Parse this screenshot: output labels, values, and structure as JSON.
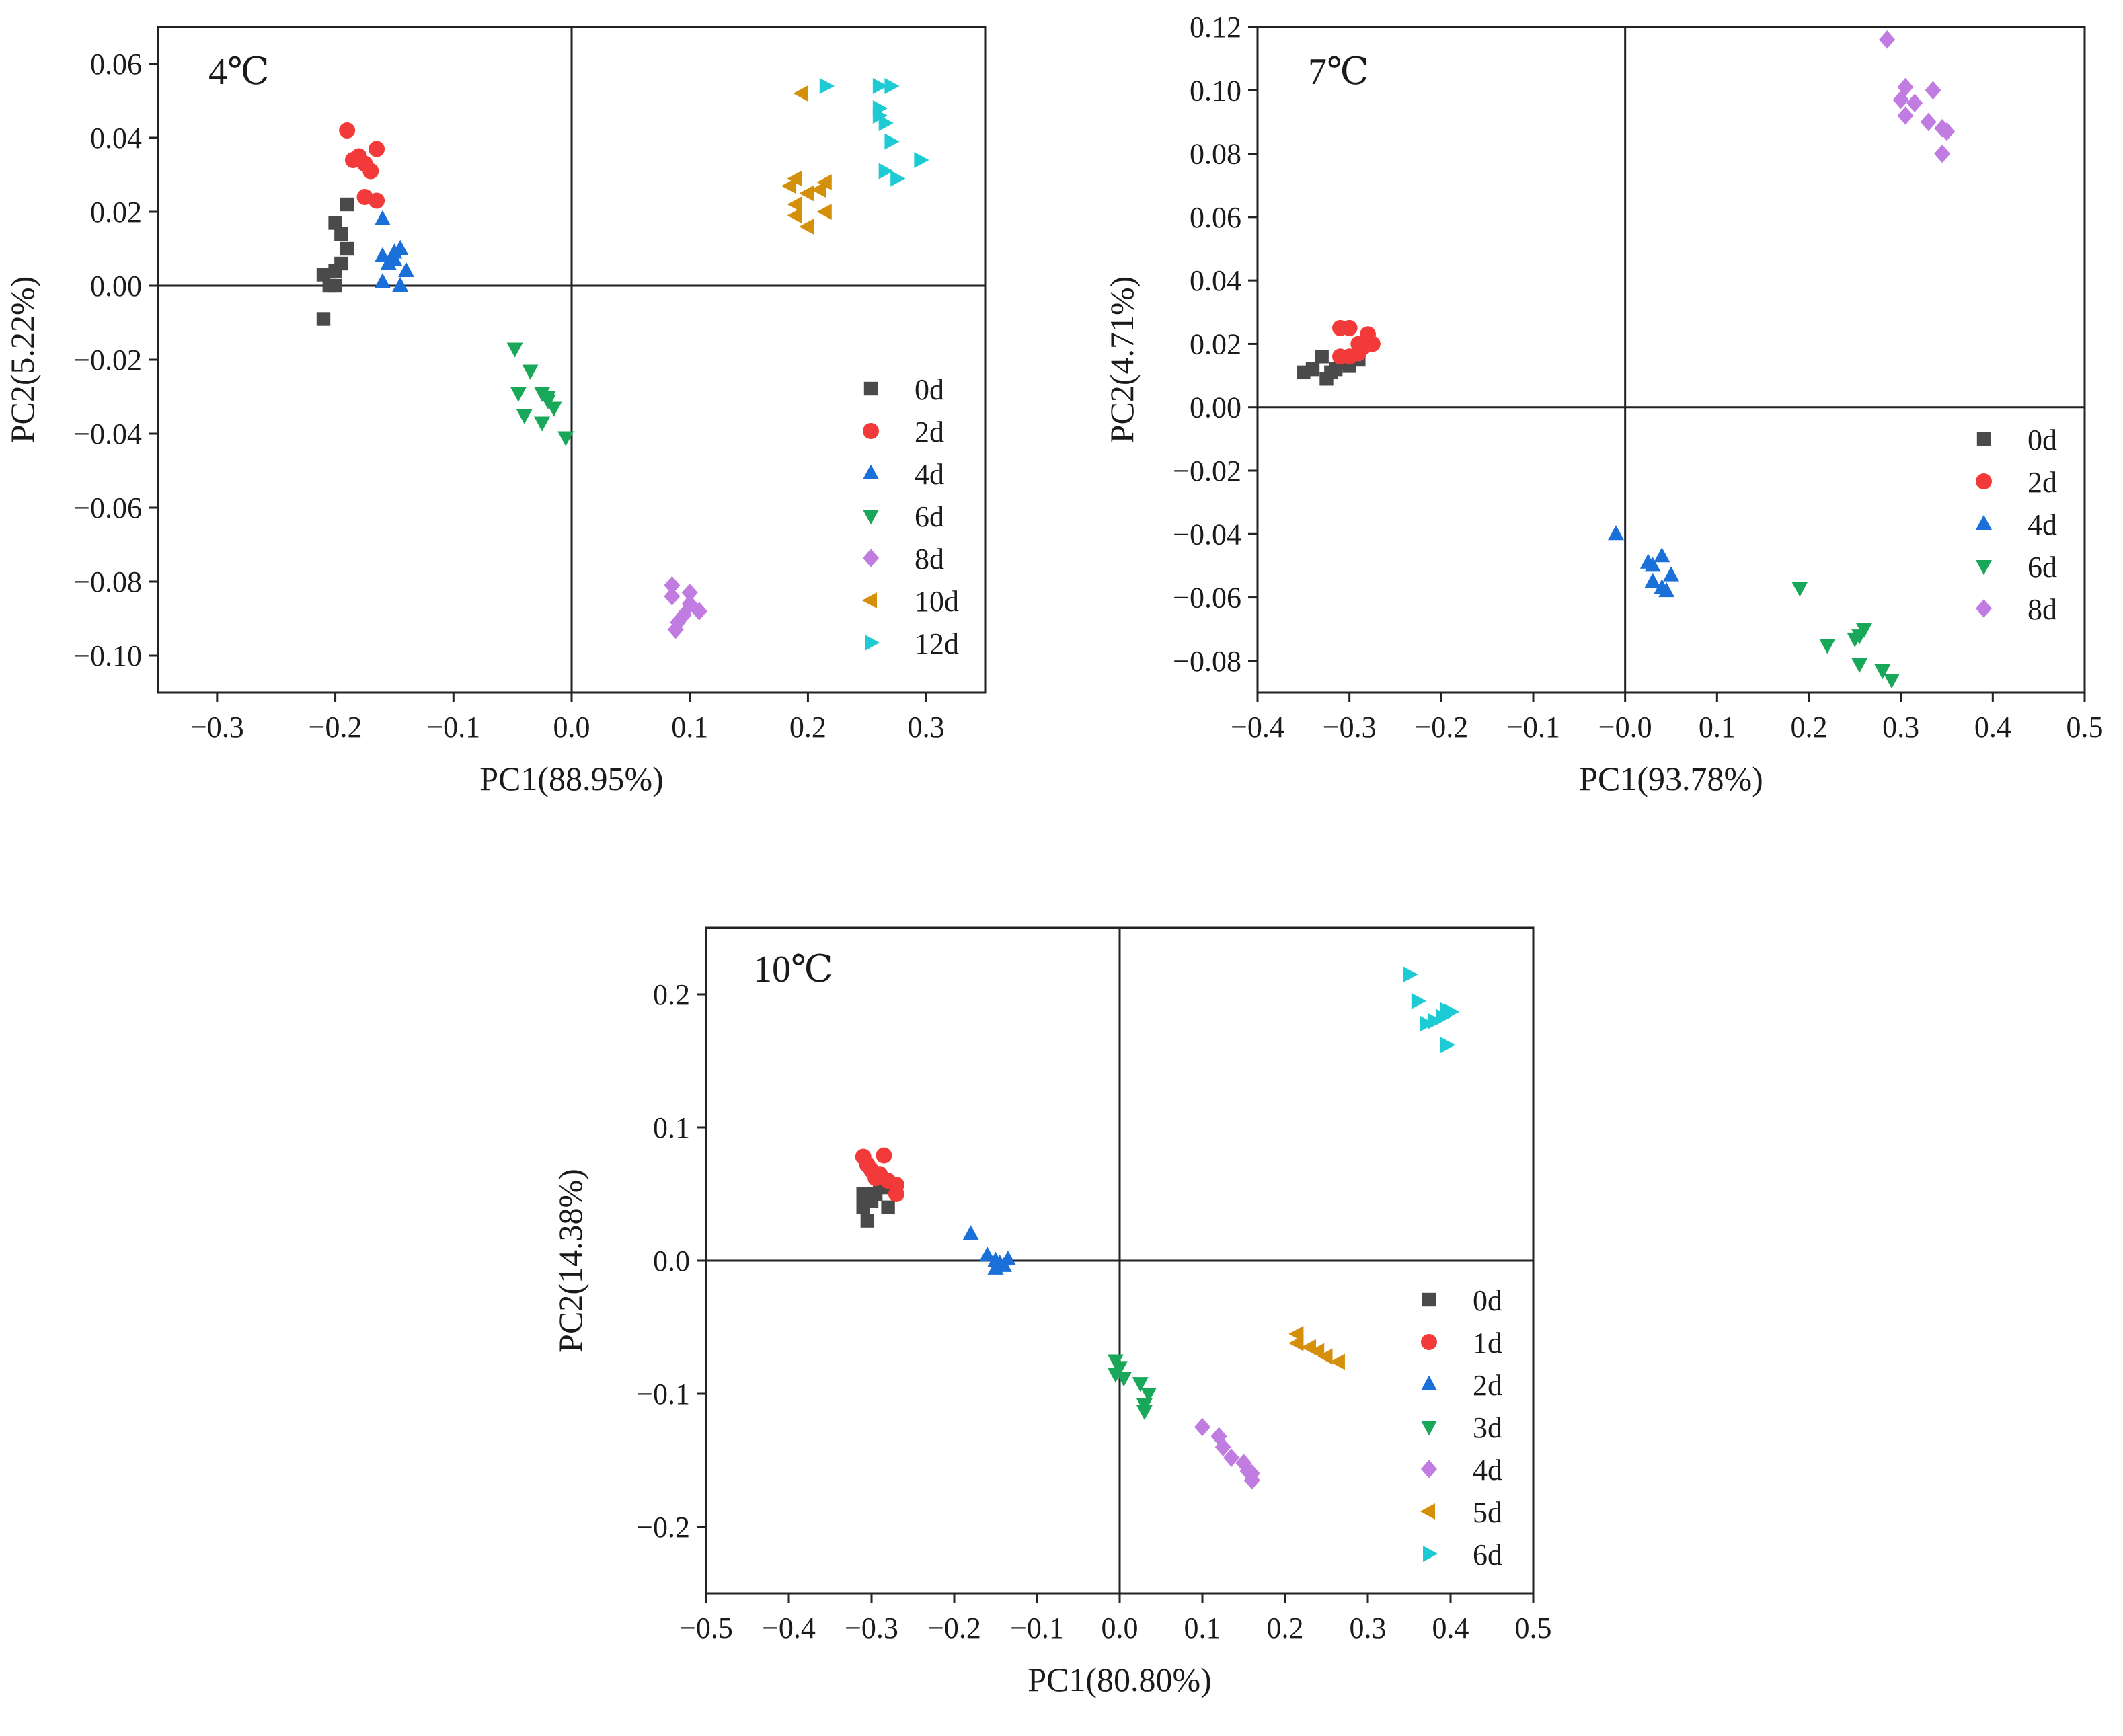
{
  "figure_kind": "PCA score plots",
  "colors": {
    "0d": "#4a4a4a",
    "red": "#f23a3a",
    "blue": "#1a6fd9",
    "green": "#19a85a",
    "purple": "#c07ce0",
    "orange": "#d4900a",
    "cyan": "#1ccbd4"
  },
  "chart_data": [
    {
      "type": "scatter",
      "title": "4℃",
      "xlabel": "PC1(88.95%)",
      "ylabel": "PC2(5.22%)",
      "xlim": [
        -0.35,
        0.35
      ],
      "ylim": [
        -0.11,
        0.07
      ],
      "xticks": [
        -0.3,
        -0.2,
        -0.1,
        0.0,
        0.1,
        0.2,
        0.3
      ],
      "xtick_labels": [
        "−0.3",
        "−0.2",
        "−0.1",
        "0.0",
        "0.1",
        "0.2",
        "0.3"
      ],
      "yticks": [
        -0.1,
        -0.08,
        -0.06,
        -0.04,
        -0.02,
        0.0,
        0.02,
        0.04,
        0.06
      ],
      "ytick_labels": [
        "−0.10",
        "−0.08",
        "−0.06",
        "−0.04",
        "−0.02",
        "0.00",
        "0.02",
        "0.04",
        "0.06"
      ],
      "legend_position": "lower-right inside",
      "series": [
        {
          "name": "0d",
          "marker": "square",
          "color": "#4a4a4a",
          "points": [
            [
              -0.21,
              -0.009
            ],
            [
              -0.2,
              0.017
            ],
            [
              -0.19,
              0.022
            ],
            [
              -0.195,
              0.014
            ],
            [
              -0.2,
              0.004
            ],
            [
              -0.205,
              0.0
            ],
            [
              -0.195,
              0.006
            ],
            [
              -0.19,
              0.01
            ],
            [
              -0.21,
              0.003
            ],
            [
              -0.2,
              0.0
            ]
          ]
        },
        {
          "name": "2d",
          "marker": "circle",
          "color": "#f23a3a",
          "points": [
            [
              -0.19,
              0.042
            ],
            [
              -0.18,
              0.035
            ],
            [
              -0.165,
              0.037
            ],
            [
              -0.175,
              0.033
            ],
            [
              -0.17,
              0.031
            ],
            [
              -0.175,
              0.024
            ],
            [
              -0.165,
              0.023
            ],
            [
              -0.185,
              0.034
            ]
          ]
        },
        {
          "name": "4d",
          "marker": "triangle-up",
          "color": "#1a6fd9",
          "points": [
            [
              -0.16,
              0.018
            ],
            [
              -0.16,
              0.008
            ],
            [
              -0.15,
              0.009
            ],
            [
              -0.145,
              0.01
            ],
            [
              -0.155,
              0.006
            ],
            [
              -0.16,
              0.001
            ],
            [
              -0.145,
              0.0
            ],
            [
              -0.14,
              0.004
            ],
            [
              -0.15,
              0.007
            ]
          ]
        },
        {
          "name": "6d",
          "marker": "triangle-down",
          "color": "#19a85a",
          "points": [
            [
              -0.048,
              -0.017
            ],
            [
              -0.035,
              -0.023
            ],
            [
              -0.045,
              -0.029
            ],
            [
              -0.025,
              -0.029
            ],
            [
              -0.02,
              -0.031
            ],
            [
              -0.015,
              -0.033
            ],
            [
              -0.04,
              -0.035
            ],
            [
              -0.025,
              -0.037
            ],
            [
              -0.005,
              -0.041
            ],
            [
              -0.02,
              -0.03
            ]
          ]
        },
        {
          "name": "8d",
          "marker": "diamond",
          "color": "#c07ce0",
          "points": [
            [
              0.085,
              -0.081
            ],
            [
              0.085,
              -0.084
            ],
            [
              0.1,
              -0.083
            ],
            [
              0.1,
              -0.086
            ],
            [
              0.108,
              -0.088
            ],
            [
              0.095,
              -0.089
            ],
            [
              0.09,
              -0.091
            ],
            [
              0.088,
              -0.093
            ]
          ]
        },
        {
          "name": "10d",
          "marker": "triangle-left",
          "color": "#d4900a",
          "points": [
            [
              0.195,
              0.052
            ],
            [
              0.19,
              0.029
            ],
            [
              0.185,
              0.027
            ],
            [
              0.215,
              0.028
            ],
            [
              0.2,
              0.025
            ],
            [
              0.21,
              0.026
            ],
            [
              0.19,
              0.022
            ],
            [
              0.215,
              0.02
            ],
            [
              0.19,
              0.019
            ],
            [
              0.2,
              0.016
            ]
          ]
        },
        {
          "name": "12d",
          "marker": "triangle-right",
          "color": "#1ccbd4",
          "points": [
            [
              0.215,
              0.054
            ],
            [
              0.26,
              0.054
            ],
            [
              0.27,
              0.054
            ],
            [
              0.26,
              0.048
            ],
            [
              0.265,
              0.044
            ],
            [
              0.27,
              0.039
            ],
            [
              0.26,
              0.046
            ],
            [
              0.265,
              0.031
            ],
            [
              0.275,
              0.029
            ],
            [
              0.295,
              0.034
            ]
          ]
        }
      ]
    },
    {
      "type": "scatter",
      "title": "7℃",
      "xlabel": "PC1(93.78%)",
      "ylabel": "PC2(4.71%)",
      "xlim": [
        -0.4,
        0.5
      ],
      "ylim": [
        -0.09,
        0.12
      ],
      "xticks": [
        -0.4,
        -0.3,
        -0.2,
        -0.1,
        0.0,
        0.1,
        0.2,
        0.3,
        0.4,
        0.5
      ],
      "xtick_labels": [
        "−0.4",
        "−0.3",
        "−0.2",
        "−0.1",
        "−0.0",
        "0.1",
        "0.2",
        "0.3",
        "0.4",
        "0.5"
      ],
      "yticks": [
        -0.08,
        -0.06,
        -0.04,
        -0.02,
        0.0,
        0.02,
        0.04,
        0.06,
        0.08,
        0.1,
        0.12
      ],
      "ytick_labels": [
        "−0.08",
        "−0.06",
        "−0.04",
        "−0.02",
        "0.00",
        "0.02",
        "0.04",
        "0.06",
        "0.08",
        "0.10",
        "0.12"
      ],
      "legend_position": "right inside",
      "series": [
        {
          "name": "0d",
          "marker": "square",
          "color": "#4a4a4a",
          "points": [
            [
              -0.35,
              0.011
            ],
            [
              -0.34,
              0.012
            ],
            [
              -0.33,
              0.016
            ],
            [
              -0.325,
              0.009
            ],
            [
              -0.315,
              0.012
            ],
            [
              -0.3,
              0.013
            ],
            [
              -0.29,
              0.015
            ],
            [
              -0.32,
              0.011
            ],
            [
              -0.31,
              0.014
            ]
          ]
        },
        {
          "name": "2d",
          "marker": "circle",
          "color": "#f23a3a",
          "points": [
            [
              -0.31,
              0.025
            ],
            [
              -0.3,
              0.025
            ],
            [
              -0.29,
              0.02
            ],
            [
              -0.28,
              0.023
            ],
            [
              -0.275,
              0.02
            ],
            [
              -0.3,
              0.016
            ],
            [
              -0.29,
              0.017
            ],
            [
              -0.31,
              0.016
            ],
            [
              -0.285,
              0.019
            ]
          ]
        },
        {
          "name": "4d",
          "marker": "triangle-up",
          "color": "#1a6fd9",
          "points": [
            [
              -0.01,
              -0.04
            ],
            [
              0.025,
              -0.049
            ],
            [
              0.04,
              -0.047
            ],
            [
              0.03,
              -0.05
            ],
            [
              0.05,
              -0.053
            ],
            [
              0.03,
              -0.055
            ],
            [
              0.04,
              -0.057
            ],
            [
              0.045,
              -0.058
            ]
          ]
        },
        {
          "name": "6d",
          "marker": "triangle-down",
          "color": "#19a85a",
          "points": [
            [
              0.19,
              -0.057
            ],
            [
              0.26,
              -0.07
            ],
            [
              0.255,
              -0.072
            ],
            [
              0.25,
              -0.073
            ],
            [
              0.22,
              -0.075
            ],
            [
              0.255,
              -0.081
            ],
            [
              0.28,
              -0.083
            ],
            [
              0.29,
              -0.086
            ]
          ]
        },
        {
          "name": "8d",
          "marker": "diamond",
          "color": "#c07ce0",
          "points": [
            [
              0.285,
              0.116
            ],
            [
              0.305,
              0.101
            ],
            [
              0.3,
              0.097
            ],
            [
              0.315,
              0.096
            ],
            [
              0.335,
              0.1
            ],
            [
              0.305,
              0.092
            ],
            [
              0.33,
              0.09
            ],
            [
              0.345,
              0.088
            ],
            [
              0.35,
              0.087
            ],
            [
              0.345,
              0.08
            ]
          ]
        }
      ]
    },
    {
      "type": "scatter",
      "title": "10℃",
      "xlabel": "PC1(80.80%)",
      "ylabel": "PC2(14.38%)",
      "xlim": [
        -0.5,
        0.5
      ],
      "ylim": [
        -0.25,
        0.25
      ],
      "xticks": [
        -0.5,
        -0.4,
        -0.3,
        -0.2,
        -0.1,
        0.0,
        0.1,
        0.2,
        0.3,
        0.4,
        0.5
      ],
      "xtick_labels": [
        "−0.5",
        "−0.4",
        "−0.3",
        "−0.2",
        "−0.1",
        "0.0",
        "0.1",
        "0.2",
        "0.3",
        "0.4",
        "0.5"
      ],
      "yticks": [
        -0.2,
        -0.1,
        0.0,
        0.1,
        0.2
      ],
      "ytick_labels": [
        "−0.2",
        "−0.1",
        "0.0",
        "0.1",
        "0.2"
      ],
      "legend_position": "lower-right inside",
      "series": [
        {
          "name": "0d",
          "marker": "square",
          "color": "#4a4a4a",
          "points": [
            [
              -0.31,
              0.04
            ],
            [
              -0.305,
              0.03
            ],
            [
              -0.31,
              0.05
            ],
            [
              -0.295,
              0.05
            ],
            [
              -0.285,
              0.055
            ],
            [
              -0.3,
              0.045
            ],
            [
              -0.29,
              0.058
            ],
            [
              -0.28,
              0.04
            ],
            [
              -0.31,
              0.045
            ]
          ]
        },
        {
          "name": "1d",
          "marker": "circle",
          "color": "#f23a3a",
          "points": [
            [
              -0.31,
              0.078
            ],
            [
              -0.305,
              0.072
            ],
            [
              -0.3,
              0.068
            ],
            [
              -0.285,
              0.079
            ],
            [
              -0.29,
              0.065
            ],
            [
              -0.28,
              0.06
            ],
            [
              -0.27,
              0.057
            ],
            [
              -0.27,
              0.05
            ],
            [
              -0.295,
              0.062
            ]
          ]
        },
        {
          "name": "2d",
          "marker": "triangle-up",
          "color": "#1a6fd9",
          "points": [
            [
              -0.18,
              0.02
            ],
            [
              -0.16,
              0.004
            ],
            [
              -0.15,
              0.0
            ],
            [
              -0.145,
              -0.002
            ],
            [
              -0.14,
              -0.004
            ],
            [
              -0.135,
              0.001
            ],
            [
              -0.15,
              -0.006
            ]
          ]
        },
        {
          "name": "3d",
          "marker": "triangle-down",
          "color": "#19a85a",
          "points": [
            [
              -0.005,
              -0.075
            ],
            [
              0.0,
              -0.08
            ],
            [
              -0.005,
              -0.085
            ],
            [
              0.005,
              -0.088
            ],
            [
              0.025,
              -0.092
            ],
            [
              0.035,
              -0.1
            ],
            [
              0.03,
              -0.108
            ],
            [
              0.03,
              -0.113
            ]
          ]
        },
        {
          "name": "4d",
          "marker": "diamond",
          "color": "#c07ce0",
          "points": [
            [
              0.1,
              -0.125
            ],
            [
              0.12,
              -0.132
            ],
            [
              0.125,
              -0.14
            ],
            [
              0.135,
              -0.148
            ],
            [
              0.15,
              -0.152
            ],
            [
              0.155,
              -0.158
            ],
            [
              0.16,
              -0.16
            ],
            [
              0.16,
              -0.165
            ]
          ]
        },
        {
          "name": "5d",
          "marker": "triangle-left",
          "color": "#d4900a",
          "points": [
            [
              0.215,
              -0.055
            ],
            [
              0.215,
              -0.062
            ],
            [
              0.23,
              -0.065
            ],
            [
              0.24,
              -0.068
            ],
            [
              0.25,
              -0.072
            ],
            [
              0.265,
              -0.076
            ]
          ]
        },
        {
          "name": "6d",
          "marker": "triangle-right",
          "color": "#1ccbd4",
          "points": [
            [
              0.35,
              0.215
            ],
            [
              0.36,
              0.195
            ],
            [
              0.37,
              0.178
            ],
            [
              0.38,
              0.18
            ],
            [
              0.39,
              0.183
            ],
            [
              0.395,
              0.188
            ],
            [
              0.4,
              0.187
            ],
            [
              0.395,
              0.162
            ]
          ]
        }
      ]
    }
  ]
}
